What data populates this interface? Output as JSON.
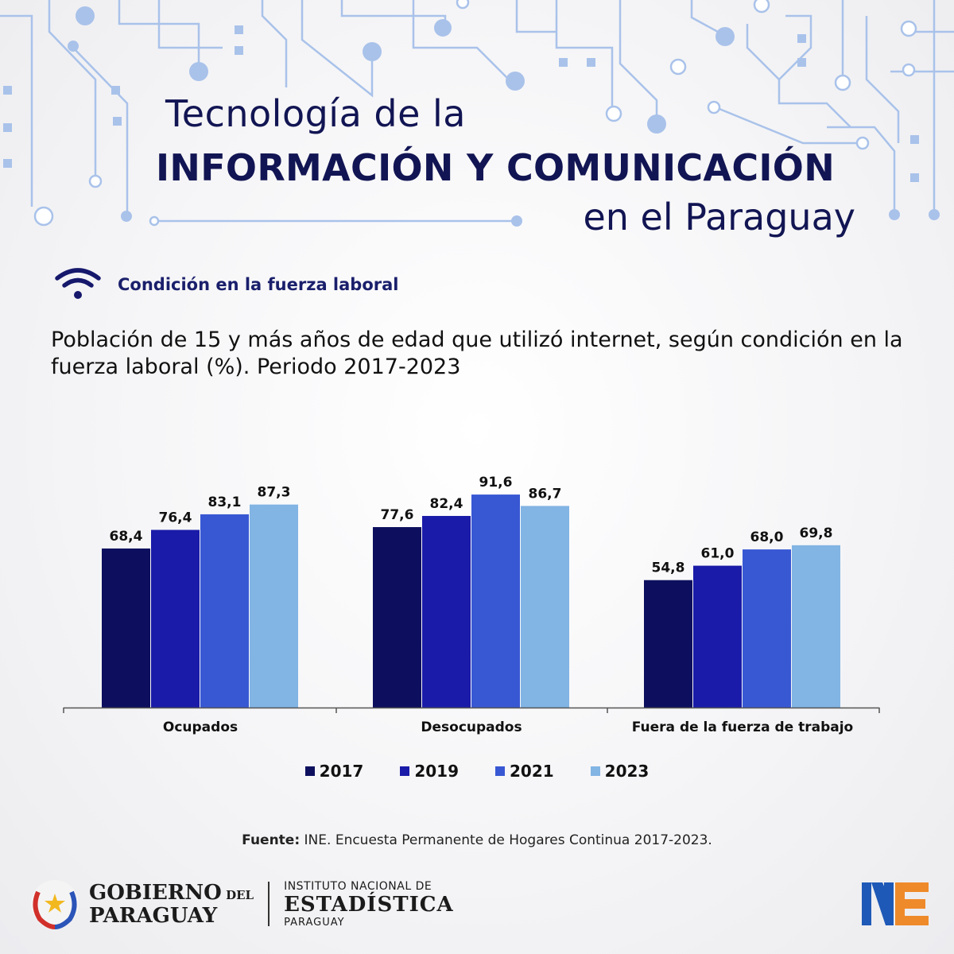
{
  "header": {
    "title_line1": "Tecnología de la",
    "title_line2": "INFORMACIÓN  Y COMUNICACIÓN",
    "title_line3": "en el Paraguay"
  },
  "section": {
    "label": "Condición en la fuerza laboral",
    "icon": "wifi-icon"
  },
  "subtitle": "Población de 15 y más años de edad que utilizó internet, según condición en la fuerza laboral (%). Periodo 2017-2023",
  "chart_data": {
    "type": "bar",
    "categories": [
      "Ocupados",
      "Desocupados",
      "Fuera de la fuerza de trabajo"
    ],
    "series": [
      {
        "name": "2017",
        "color": "#0d0f5e",
        "values": [
          68.4,
          77.6,
          54.8
        ],
        "labels": [
          "68,4",
          "77,6",
          "54,8"
        ]
      },
      {
        "name": "2019",
        "color": "#1a1ba8",
        "values": [
          76.4,
          82.4,
          61.0
        ],
        "labels": [
          "76,4",
          "82,4",
          "61,0"
        ]
      },
      {
        "name": "2021",
        "color": "#3858d3",
        "values": [
          83.1,
          91.6,
          68.0
        ],
        "labels": [
          "83,1",
          "91,6",
          "68,0"
        ]
      },
      {
        "name": "2023",
        "color": "#82b4e4",
        "values": [
          87.3,
          86.7,
          69.8
        ],
        "labels": [
          "87,3",
          "86,7",
          "69,8"
        ]
      }
    ],
    "ylim": [
      0,
      100
    ],
    "grid": false,
    "legend": "bottom"
  },
  "source": {
    "prefix": "Fuente:",
    "text": " INE. Encuesta Permanente de Hogares Continua 2017-2023."
  },
  "footer": {
    "gov_line1": "GOBIERNO",
    "gov_line1_small": " DEL",
    "gov_line2": "PARAGUAY",
    "ine_line1": "INSTITUTO NACIONAL DE",
    "ine_line2": "ESTADÍSTICA",
    "ine_line3": "PARAGUAY",
    "logo_text": "INE"
  },
  "colors": {
    "accent": "#121553",
    "circuit": "#9bb8e6"
  }
}
